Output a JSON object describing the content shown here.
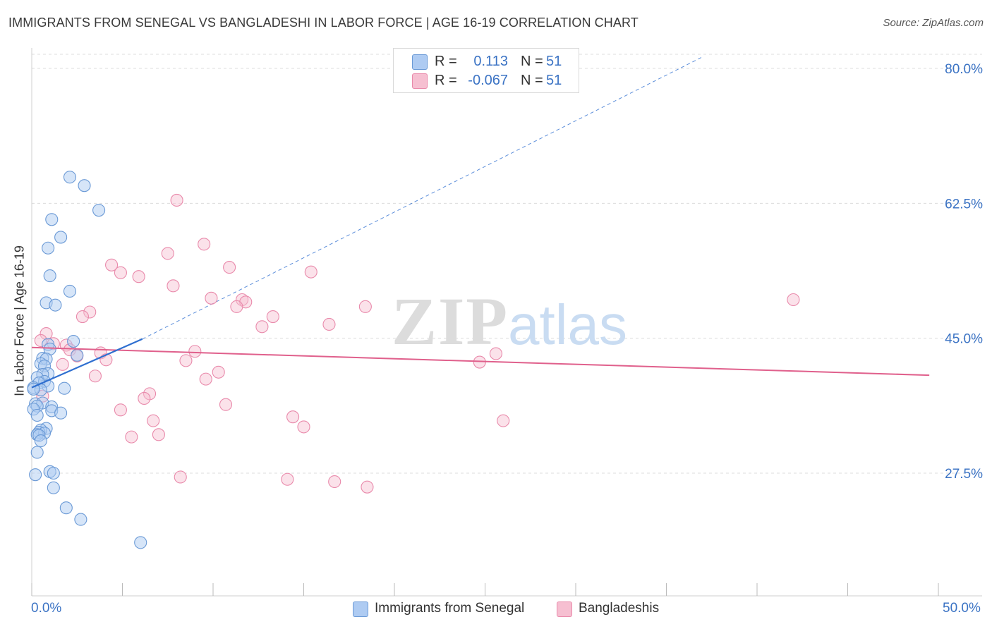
{
  "title": "IMMIGRANTS FROM SENEGAL VS BANGLADESHI IN LABOR FORCE | AGE 16-19 CORRELATION CHART",
  "source": "Source: ZipAtlas.com",
  "legend_top": {
    "rows": [
      {
        "r_label": "R =",
        "r_value": "0.113",
        "n_label": "N =",
        "n_value": "51",
        "color": "#aecbf2"
      },
      {
        "r_label": "R =",
        "r_value": "-0.067",
        "n_label": "N =",
        "n_value": "51",
        "color": "#f6bfd1"
      }
    ]
  },
  "legend_bottom": {
    "items": [
      {
        "label": "Immigrants from Senegal",
        "color": "#aecbf2"
      },
      {
        "label": "Bangladeshis",
        "color": "#f6bfd1"
      }
    ]
  },
  "colors": {
    "blue_fill": "#aecbf2",
    "blue_stroke": "#6b9ad6",
    "blue_line": "#2f6fd0",
    "pink_fill": "#f6bfd1",
    "pink_stroke": "#e98aab",
    "pink_line": "#e0608c",
    "grid": "#dcdcdc",
    "axis_text": "#3b73c4"
  },
  "chart_data": {
    "type": "scatter",
    "title": "IMMIGRANTS FROM SENEGAL VS BANGLADESHI IN LABOR FORCE | AGE 16-19 CORRELATION CHART",
    "xlabel": "",
    "ylabel": "In Labor Force | Age 16-19",
    "xlim": [
      0,
      50
    ],
    "ylim": [
      10,
      83
    ],
    "x_tick_labels": [
      "0.0%",
      "50.0%"
    ],
    "y_ticks": [
      27.5,
      45.0,
      62.5,
      80.0
    ],
    "y_tick_labels": [
      "27.5%",
      "45.0%",
      "62.5%",
      "80.0%"
    ],
    "grid": true,
    "legend_position": "top-center",
    "watermark": "ZIPatlas",
    "series": [
      {
        "name": "Immigrants from Senegal",
        "R": 0.113,
        "N": 51,
        "trend": {
          "x": [
            0,
            6.1
          ],
          "y": [
            38.6,
            44.9
          ]
        },
        "trend_extended": {
          "x": [
            6.1,
            37.0
          ],
          "y": [
            44.9,
            81.5
          ]
        },
        "points": [
          [
            2.1,
            65.9
          ],
          [
            2.9,
            64.8
          ],
          [
            3.7,
            61.6
          ],
          [
            1.1,
            60.4
          ],
          [
            1.6,
            58.1
          ],
          [
            0.9,
            56.7
          ],
          [
            1.0,
            53.1
          ],
          [
            2.1,
            51.1
          ],
          [
            0.8,
            49.6
          ],
          [
            1.3,
            49.3
          ],
          [
            2.3,
            44.6
          ],
          [
            0.9,
            44.2
          ],
          [
            1.0,
            43.6
          ],
          [
            2.5,
            42.8
          ],
          [
            0.6,
            42.4
          ],
          [
            0.8,
            42.3
          ],
          [
            0.5,
            41.7
          ],
          [
            0.7,
            41.4
          ],
          [
            0.9,
            40.4
          ],
          [
            0.6,
            40.3
          ],
          [
            0.3,
            39.9
          ],
          [
            0.7,
            39.4
          ],
          [
            0.4,
            39.2
          ],
          [
            0.9,
            38.8
          ],
          [
            0.1,
            38.6
          ],
          [
            1.8,
            38.5
          ],
          [
            0.5,
            38.3
          ],
          [
            0.2,
            36.5
          ],
          [
            0.6,
            36.6
          ],
          [
            0.3,
            36.2
          ],
          [
            1.1,
            36.1
          ],
          [
            0.1,
            35.8
          ],
          [
            1.1,
            35.6
          ],
          [
            1.6,
            35.3
          ],
          [
            0.3,
            35.0
          ],
          [
            0.8,
            33.3
          ],
          [
            0.5,
            33.1
          ],
          [
            0.4,
            32.8
          ],
          [
            0.7,
            32.7
          ],
          [
            0.3,
            32.5
          ],
          [
            0.4,
            32.4
          ],
          [
            0.5,
            31.7
          ],
          [
            0.3,
            30.2
          ],
          [
            1.0,
            27.7
          ],
          [
            1.2,
            27.5
          ],
          [
            0.2,
            27.3
          ],
          [
            1.2,
            25.6
          ],
          [
            1.9,
            23.0
          ],
          [
            2.7,
            21.5
          ],
          [
            6.0,
            18.5
          ],
          [
            0.1,
            38.4
          ]
        ]
      },
      {
        "name": "Bangladeshis",
        "R": -0.067,
        "N": 51,
        "trend": {
          "x": [
            0,
            49.5
          ],
          "y": [
            43.8,
            40.2
          ]
        },
        "points": [
          [
            8.0,
            62.9
          ],
          [
            9.5,
            57.2
          ],
          [
            7.5,
            56.0
          ],
          [
            4.4,
            54.5
          ],
          [
            10.9,
            54.2
          ],
          [
            4.9,
            53.5
          ],
          [
            15.4,
            53.6
          ],
          [
            5.9,
            53.0
          ],
          [
            7.8,
            51.8
          ],
          [
            9.9,
            50.2
          ],
          [
            11.6,
            50.0
          ],
          [
            11.8,
            49.7
          ],
          [
            42.0,
            50.0
          ],
          [
            11.3,
            49.1
          ],
          [
            18.4,
            49.1
          ],
          [
            3.2,
            48.4
          ],
          [
            2.8,
            47.8
          ],
          [
            13.3,
            47.8
          ],
          [
            16.4,
            46.8
          ],
          [
            12.7,
            46.5
          ],
          [
            0.8,
            45.6
          ],
          [
            0.5,
            44.7
          ],
          [
            1.2,
            44.3
          ],
          [
            1.9,
            44.1
          ],
          [
            9.0,
            43.3
          ],
          [
            2.1,
            43.5
          ],
          [
            3.8,
            43.1
          ],
          [
            25.6,
            43.0
          ],
          [
            2.5,
            42.7
          ],
          [
            4.1,
            42.2
          ],
          [
            8.5,
            42.1
          ],
          [
            24.7,
            41.9
          ],
          [
            1.7,
            41.6
          ],
          [
            10.3,
            40.6
          ],
          [
            3.5,
            40.1
          ],
          [
            9.6,
            39.7
          ],
          [
            6.5,
            37.8
          ],
          [
            6.2,
            37.2
          ],
          [
            10.7,
            36.4
          ],
          [
            4.9,
            35.7
          ],
          [
            0.6,
            37.5
          ],
          [
            14.4,
            34.8
          ],
          [
            6.7,
            34.3
          ],
          [
            26.0,
            34.3
          ],
          [
            15.0,
            33.5
          ],
          [
            7.0,
            32.5
          ],
          [
            5.5,
            32.2
          ],
          [
            8.2,
            27.0
          ],
          [
            14.1,
            26.7
          ],
          [
            16.7,
            26.4
          ],
          [
            18.5,
            25.7
          ]
        ]
      }
    ]
  },
  "axis": {
    "x_left": "0.0%",
    "x_right": "50.0%",
    "ylabel": "In Labor Force | Age 16-19"
  }
}
